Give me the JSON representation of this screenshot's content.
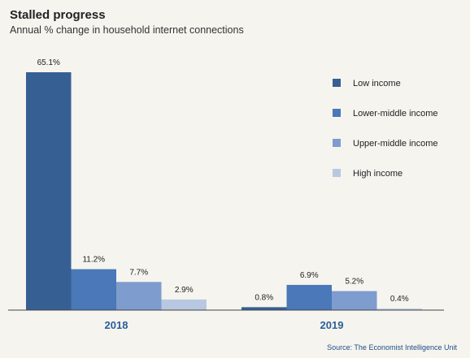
{
  "header": {
    "title": "Stalled progress",
    "subtitle": "Annual % change in household internet connections"
  },
  "source": "Source: The Economist Intelligence Unit",
  "chart_data": {
    "type": "bar",
    "categories": [
      "2018",
      "2019"
    ],
    "series": [
      {
        "name": "Low income",
        "values": [
          65.1,
          0.8
        ],
        "labels": [
          "65.1%",
          "0.8%"
        ],
        "color": "#365f94"
      },
      {
        "name": "Lower-middle income",
        "values": [
          11.2,
          6.9
        ],
        "labels": [
          "11.2%",
          "6.9%"
        ],
        "color": "#4a78b8"
      },
      {
        "name": "Upper-middle income",
        "values": [
          7.7,
          5.2
        ],
        "labels": [
          "7.7%",
          "5.2%"
        ],
        "color": "#7e9ccd"
      },
      {
        "name": "High income",
        "values": [
          2.9,
          0.4
        ],
        "labels": [
          "2.9%",
          "0.4%"
        ],
        "color": "#b8c8e1"
      }
    ],
    "ylim": [
      0,
      65.1
    ],
    "grid": false,
    "legend": "top-right"
  }
}
